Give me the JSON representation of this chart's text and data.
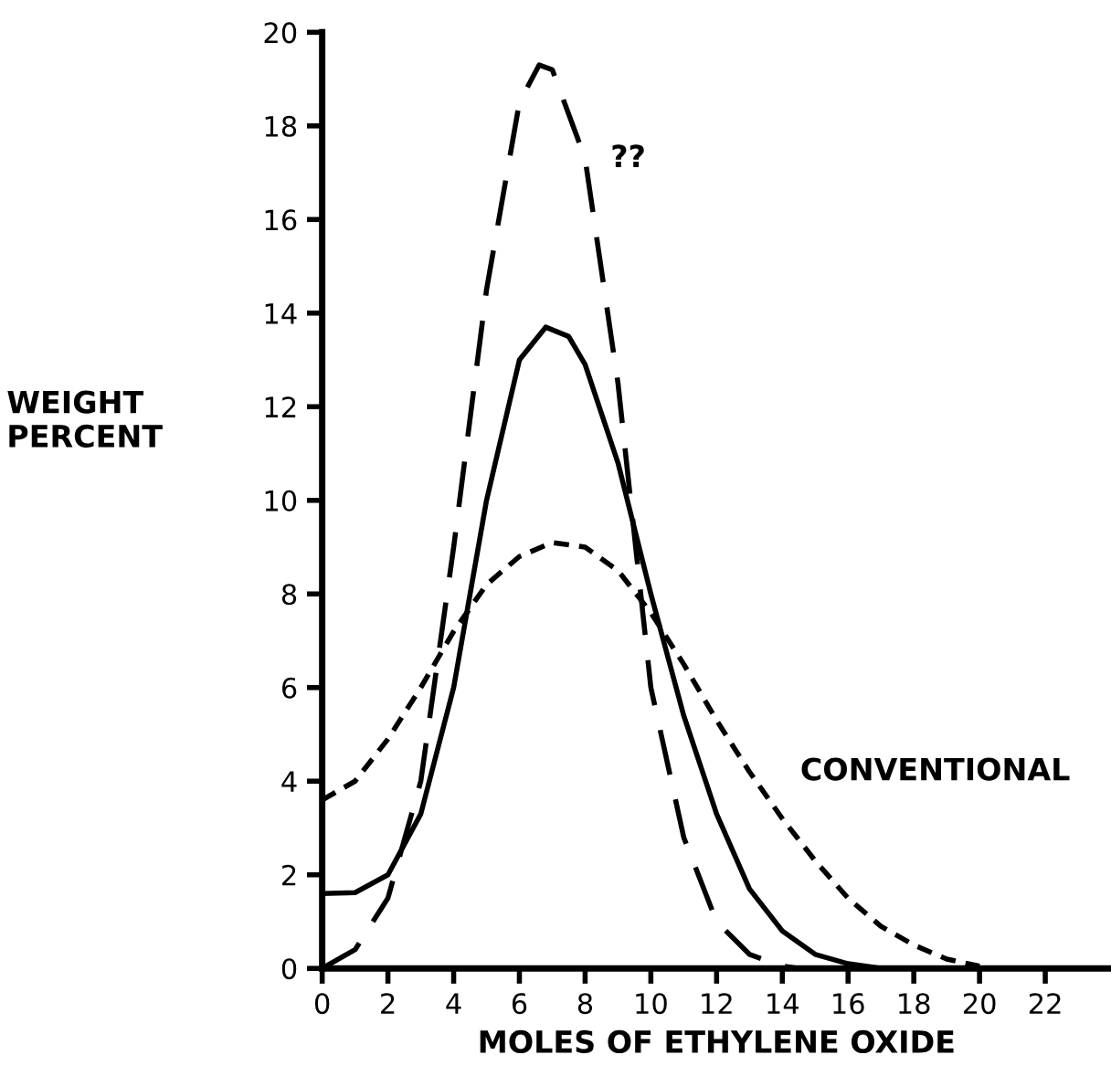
{
  "chart_data": {
    "type": "line",
    "xlabel": "MOLES OF ETHYLENE OXIDE",
    "ylabel": "WEIGHT\nPERCENT",
    "xlim": [
      0,
      24
    ],
    "xticks": [
      0,
      2,
      4,
      6,
      8,
      10,
      12,
      14,
      16,
      18,
      20,
      22
    ],
    "ylim": [
      0,
      20
    ],
    "yticks": [
      0,
      2,
      4,
      6,
      8,
      10,
      12,
      14,
      16,
      18,
      20
    ],
    "grid": false,
    "series": [
      {
        "name": "??",
        "color": "#000000",
        "line_style": "dashed",
        "x": [
          0,
          1,
          2,
          3,
          4,
          5,
          6,
          6.6,
          7,
          8,
          9,
          10,
          11,
          12,
          13,
          14,
          14.5
        ],
        "values": [
          0,
          0.4,
          1.5,
          4.0,
          9.0,
          14.5,
          18.5,
          19.3,
          19.2,
          17.3,
          12.5,
          6.0,
          2.8,
          1.0,
          0.3,
          0.05,
          0
        ]
      },
      {
        "color": "#000000",
        "line_style": "solid",
        "x": [
          0,
          1,
          2,
          3,
          4,
          5,
          6,
          6.8,
          7.5,
          8,
          9,
          10,
          11,
          12,
          13,
          14,
          15,
          16,
          17
        ],
        "values": [
          1.6,
          1.62,
          2.0,
          3.3,
          6.0,
          10.0,
          13.0,
          13.7,
          13.5,
          12.9,
          10.8,
          8.0,
          5.4,
          3.3,
          1.7,
          0.8,
          0.3,
          0.1,
          0
        ]
      },
      {
        "name": "CONVENTIONAL",
        "color": "#000000",
        "line_style": "dotted",
        "x": [
          0,
          1,
          2,
          3,
          4,
          5,
          6,
          7,
          8,
          9,
          10,
          11,
          12,
          13,
          14,
          15,
          16,
          17,
          18,
          19,
          20
        ],
        "values": [
          3.6,
          4.0,
          4.9,
          6.0,
          7.2,
          8.2,
          8.8,
          9.1,
          9.0,
          8.5,
          7.6,
          6.5,
          5.3,
          4.2,
          3.2,
          2.3,
          1.5,
          0.9,
          0.5,
          0.2,
          0.05
        ]
      }
    ]
  }
}
